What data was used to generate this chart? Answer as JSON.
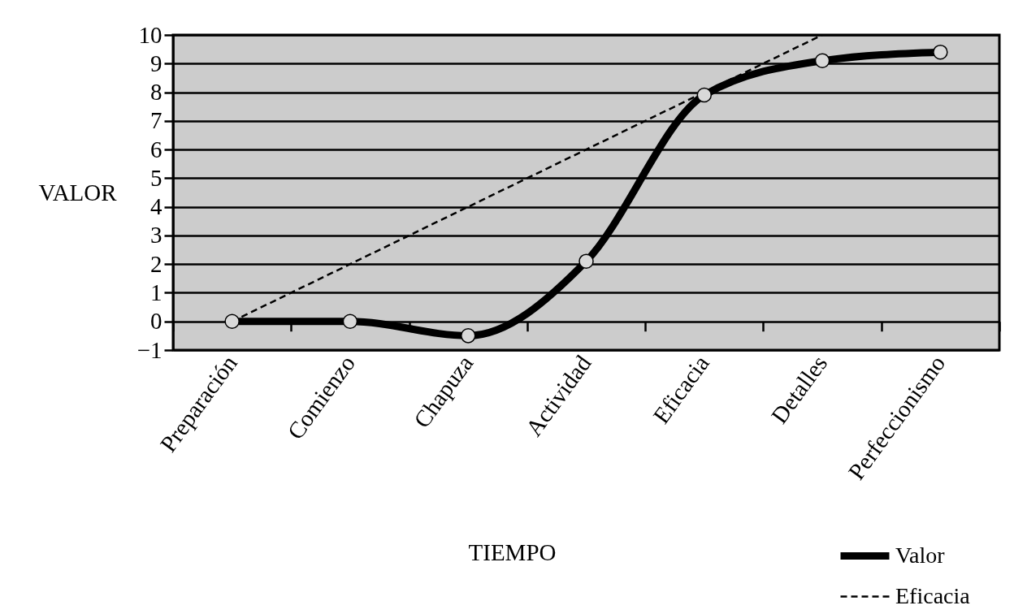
{
  "chart_data": {
    "type": "line",
    "xlabel": "TIEMPO",
    "ylabel": "VALOR",
    "categories": [
      "Preparación",
      "Comienzo",
      "Chapuza",
      "Actividad",
      "Eficacia",
      "Detalles",
      "Perfeccionismo"
    ],
    "series": [
      {
        "name": "Valor",
        "color": "#000000",
        "values": [
          0,
          0,
          -0.5,
          2.1,
          7.9,
          9.1,
          9.4
        ],
        "marker": "circle",
        "line_style": "solid"
      },
      {
        "name": "Eficacia",
        "color": "#000000",
        "values": [
          0,
          2,
          4,
          6,
          8,
          10,
          null
        ],
        "marker": "none",
        "line_style": "dashed"
      }
    ],
    "ylim": [
      -1,
      10
    ],
    "yticks": [
      -1,
      0,
      1,
      2,
      3,
      4,
      5,
      6,
      7,
      8,
      9,
      10
    ],
    "grid": "y",
    "legend": "bottom right"
  }
}
